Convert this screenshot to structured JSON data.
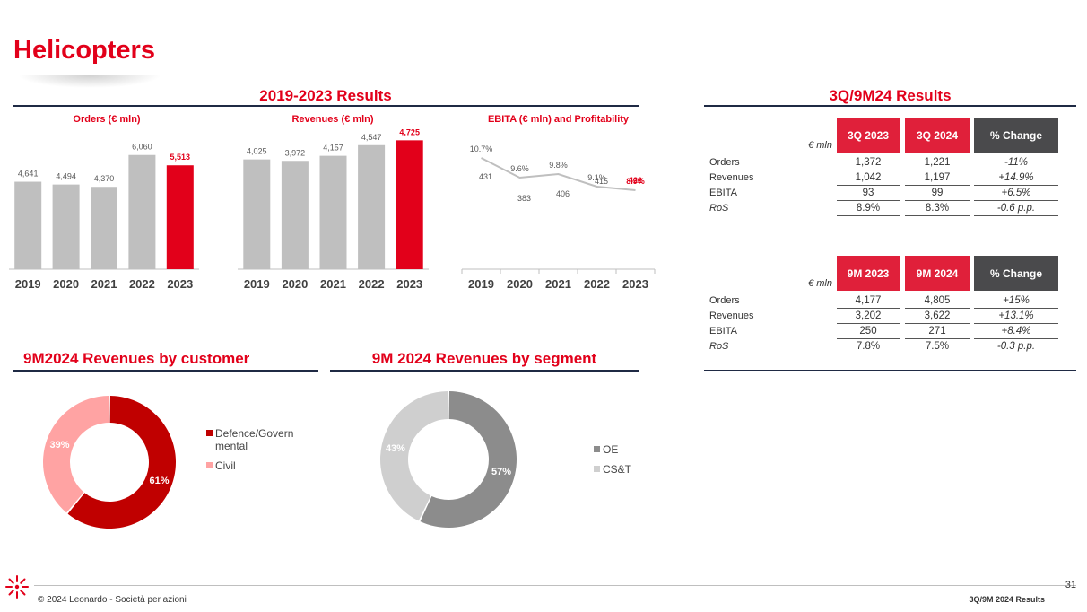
{
  "page": {
    "title": "Helicopters",
    "page_number": "31",
    "footer_left": "© 2024 Leonardo - Società per azioni",
    "footer_right": "3Q/9M 2024 Results"
  },
  "colors": {
    "accent_red": "#e2001a",
    "bar_grey": "#bfbfbf",
    "dark_grey": "#4a4a4c",
    "navy_rule": "#1f2a44"
  },
  "sections": {
    "history": "2019-2023 Results",
    "results": "3Q/9M24 Results",
    "by_customer": "9M2024  Revenues by customer",
    "by_segment": "9M 2024 Revenues by segment"
  },
  "chart_data": [
    {
      "type": "bar",
      "title": "Orders (€ mln)",
      "categories": [
        "2019",
        "2020",
        "2021",
        "2022",
        "2023"
      ],
      "values": [
        4641,
        4494,
        4370,
        6060,
        5513
      ],
      "labels": [
        "4,641",
        "4,494",
        "4,370",
        "6,060",
        "5,513"
      ],
      "highlight_index": 4,
      "ylim": [
        0,
        7000
      ]
    },
    {
      "type": "bar",
      "title": "Revenues (€ mln)",
      "categories": [
        "2019",
        "2020",
        "2021",
        "2022",
        "2023"
      ],
      "values": [
        4025,
        3972,
        4157,
        4547,
        4725
      ],
      "labels": [
        "4,025",
        "3,972",
        "4,157",
        "4,547",
        "4,725"
      ],
      "highlight_index": 4,
      "ylim": [
        0,
        5000
      ]
    },
    {
      "type": "line",
      "title": "EBITA (€ mln) and Profitability",
      "categories": [
        "2019",
        "2020",
        "2021",
        "2022",
        "2023"
      ],
      "series": [
        {
          "values": [
            10.7,
            9.6,
            9.8,
            9.1,
            8.9
          ],
          "labels": [
            "10.7%",
            "9.6%",
            "9.8%",
            "9.1%",
            "8.9%"
          ]
        }
      ],
      "ebita_values": [
        431,
        383,
        406,
        415,
        422
      ],
      "ebita_labels": [
        "431",
        "383",
        "406",
        "415",
        "422"
      ],
      "highlight_index": 4,
      "ylim": [
        8,
        12
      ]
    },
    {
      "type": "pie",
      "title": "9M2024  Revenues by customer",
      "categories": [
        "Defence/Governmental",
        "Civil"
      ],
      "legend_lines": [
        [
          "Defence/Govern",
          "mental"
        ],
        [
          "Civil"
        ]
      ],
      "values": [
        61,
        39
      ],
      "labels": [
        "61%",
        "39%"
      ],
      "colors": [
        "#c00000",
        "#ffa3a3"
      ]
    },
    {
      "type": "pie",
      "title": "9M 2024 Revenues by segment",
      "categories": [
        "OE",
        "CS&T"
      ],
      "legend_lines": [
        [
          "OE"
        ],
        [
          "CS&T"
        ]
      ],
      "values": [
        57,
        43
      ],
      "labels": [
        "57%",
        "43%"
      ],
      "colors": [
        "#8c8c8c",
        "#cfcfcf"
      ]
    }
  ],
  "quarter_table": {
    "unit": "€ mln",
    "headers": [
      "3Q 2023",
      "3Q 2024",
      "% Change"
    ],
    "rows": [
      {
        "label": "Orders",
        "a": "1,372",
        "b": "1,221",
        "chg": "-11%"
      },
      {
        "label": "Revenues",
        "a": "1,042",
        "b": "1,197",
        "chg": "+14.9%"
      },
      {
        "label": "EBITA",
        "a": "93",
        "b": "99",
        "chg": "+6.5%"
      },
      {
        "label": "RoS",
        "a": "8.9%",
        "b": "8.3%",
        "chg": "-0.6 p.p."
      }
    ]
  },
  "ninemonth_table": {
    "unit": "€ mln",
    "headers": [
      "9M 2023",
      "9M 2024",
      "% Change"
    ],
    "rows": [
      {
        "label": "Orders",
        "a": "4,177",
        "b": "4,805",
        "chg": "+15%"
      },
      {
        "label": "Revenues",
        "a": "3,202",
        "b": "3,622",
        "chg": "+13.1%"
      },
      {
        "label": "EBITA",
        "a": "250",
        "b": "271",
        "chg": "+8.4%"
      },
      {
        "label": "RoS",
        "a": "7.8%",
        "b": "7.5%",
        "chg": "-0.3 p.p."
      }
    ]
  }
}
